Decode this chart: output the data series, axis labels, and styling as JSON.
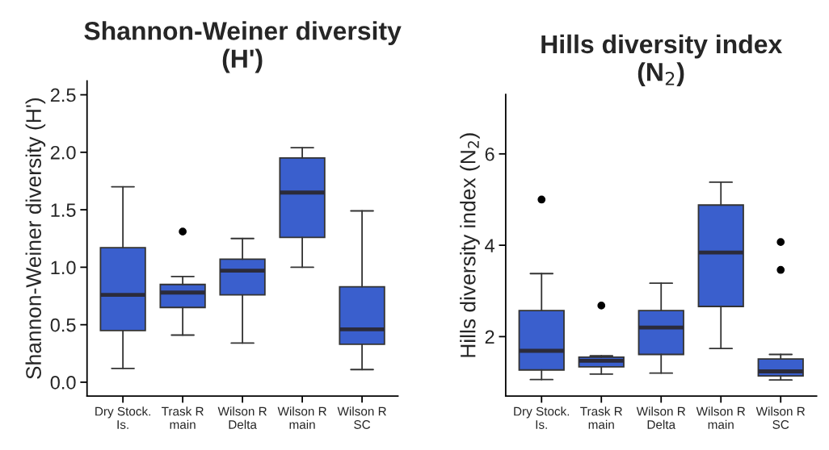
{
  "chart_data": [
    {
      "type": "box",
      "title": "Shannon-Weiner diversity\n(H')",
      "ylabel": "Shannon-Weiner diversity (H')",
      "color": "#3a5fcd",
      "categories": [
        "Dry Stock.\nIs.",
        "Trask R\nmain",
        "Wilson R\nDelta",
        "Wilson R\nmain",
        "Wilson R\nSC"
      ],
      "ylim": [
        -0.12,
        2.62
      ],
      "yticks": [
        {
          "value": 0,
          "label": "0.0"
        },
        0.5,
        {
          "value": 1,
          "label": "1.0"
        },
        1.5,
        {
          "value": 2,
          "label": "2.0"
        },
        2.5
      ],
      "grid": false,
      "boxes": [
        {
          "low": 0.12,
          "q1": 0.45,
          "median": 0.76,
          "q3": 1.17,
          "high": 1.7
        },
        {
          "low": 0.41,
          "q1": 0.65,
          "median": 0.78,
          "q3": 0.85,
          "high": 0.92,
          "outliers": [
            1.31
          ]
        },
        {
          "low": 0.34,
          "q1": 0.76,
          "median": 0.97,
          "q3": 1.07,
          "high": 1.25
        },
        {
          "low": 1.0,
          "q1": 1.26,
          "median": 1.65,
          "q3": 1.95,
          "high": 2.04
        },
        {
          "low": 0.11,
          "q1": 0.33,
          "median": 0.46,
          "q3": 0.83,
          "high": 1.49
        }
      ]
    },
    {
      "type": "box",
      "title": "Hills diversity index\n(N$_{2}$)",
      "ylabel": "Hills diversity index (N$_{2}$)",
      "color": "#3a5fcd",
      "categories": [
        "Dry Stock.\nIs.",
        "Trask R\nmain",
        "Wilson R\nDelta",
        "Wilson R\nmain",
        "Wilson R\nSC"
      ],
      "ylim": [
        0.7,
        7.3
      ],
      "yticks": [
        2,
        4,
        6
      ],
      "grid": false,
      "boxes": [
        {
          "low": 1.06,
          "q1": 1.27,
          "median": 1.69,
          "q3": 2.57,
          "high": 3.38,
          "outliers": [
            5.0
          ]
        },
        {
          "low": 1.18,
          "q1": 1.34,
          "median": 1.47,
          "q3": 1.55,
          "high": 1.58,
          "outliers": [
            2.68
          ]
        },
        {
          "low": 1.2,
          "q1": 1.61,
          "median": 2.2,
          "q3": 2.57,
          "high": 3.17
        },
        {
          "low": 1.74,
          "q1": 2.66,
          "median": 3.84,
          "q3": 4.88,
          "high": 5.38
        },
        {
          "low": 1.05,
          "q1": 1.14,
          "median": 1.24,
          "q3": 1.51,
          "high": 1.61,
          "outliers": [
            4.07,
            3.46
          ]
        }
      ]
    }
  ]
}
